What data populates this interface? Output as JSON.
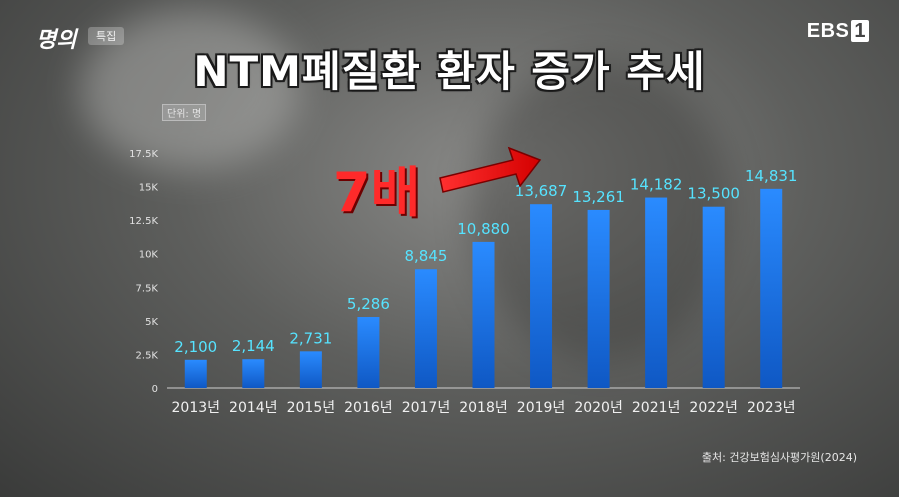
{
  "header": {
    "program_logo": "명의",
    "badge": "특집",
    "channel": "EBS",
    "channel_num": "1"
  },
  "chart_data": {
    "type": "bar",
    "title": "NTM폐질환 환자 증가 추세",
    "unit_label": "단위: 명",
    "categories": [
      "2013년",
      "2014년",
      "2015년",
      "2016년",
      "2017년",
      "2018년",
      "2019년",
      "2020년",
      "2021년",
      "2022년",
      "2023년"
    ],
    "values": [
      2100,
      2144,
      2731,
      5286,
      8845,
      10880,
      13687,
      13261,
      14182,
      13500,
      14831
    ],
    "value_labels": [
      "2,100",
      "2,144",
      "2,731",
      "5,286",
      "8,845",
      "10,880",
      "13,687",
      "13,261",
      "14,182",
      "13,500",
      "14,831"
    ],
    "ylim": [
      0,
      17500
    ],
    "yticks": [
      0,
      2500,
      5000,
      7500,
      10000,
      12500,
      15000,
      17500
    ],
    "ytick_labels": [
      "0",
      "2.5K",
      "5K",
      "7.5K",
      "10K",
      "12.5K",
      "15K",
      "17.5K"
    ],
    "grid": false,
    "annotation": "7배",
    "source": "출처: 건강보험심사평가원(2024)",
    "colors": {
      "bar": "#1f7ae8",
      "bar_dark": "#0e4fae",
      "value_label": "#56e3ff",
      "callout": "#ff2a2a"
    }
  }
}
